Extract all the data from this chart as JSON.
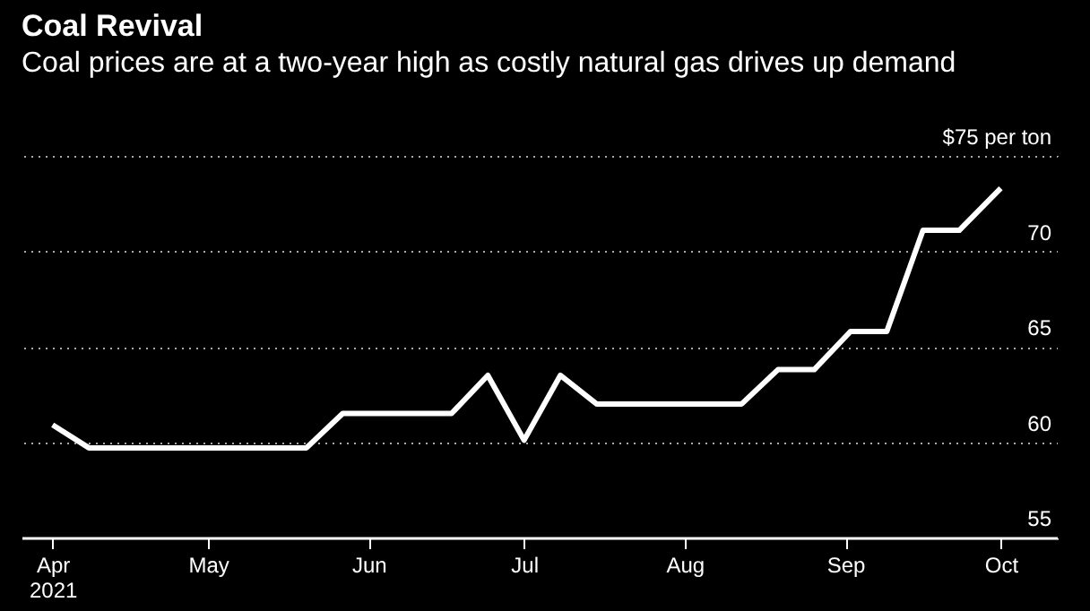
{
  "chart_data": {
    "type": "line",
    "title": "Coal Revival",
    "subtitle": "Coal prices are at a two-year high as costly natural gas drives up demand",
    "x": [
      "2021-04-01",
      "2021-04-08",
      "2021-05-20",
      "2021-05-27",
      "2021-06-17",
      "2021-06-24",
      "2021-07-01",
      "2021-07-08",
      "2021-07-15",
      "2021-08-12",
      "2021-08-19",
      "2021-08-26",
      "2021-09-02",
      "2021-09-09",
      "2021-09-16",
      "2021-09-23",
      "2021-10-01"
    ],
    "series": [
      {
        "color": "#ffffff",
        "values": [
          60.9,
          59.7,
          59.7,
          61.5,
          61.5,
          63.5,
          60.1,
          63.5,
          62.0,
          62.0,
          63.8,
          63.8,
          65.8,
          65.8,
          71.1,
          71.1,
          73.3
        ]
      }
    ],
    "xlim": [
      "2021-03-26",
      "2021-10-12"
    ],
    "xticks": [
      {
        "value": "2021-04-01",
        "label": "Apr\n2021"
      },
      {
        "value": "2021-05-01",
        "label": "May"
      },
      {
        "value": "2021-06-01",
        "label": "Jun"
      },
      {
        "value": "2021-07-01",
        "label": "Jul"
      },
      {
        "value": "2021-08-01",
        "label": "Aug"
      },
      {
        "value": "2021-09-01",
        "label": "Sep"
      },
      {
        "value": "2021-10-01",
        "label": "Oct"
      }
    ],
    "ylim": [
      55,
      75
    ],
    "yticks": [
      55,
      60,
      65,
      70,
      {
        "value": 75,
        "label": "$75 per ton"
      }
    ],
    "grid": "y",
    "line_style": "solid",
    "marker": "none"
  }
}
